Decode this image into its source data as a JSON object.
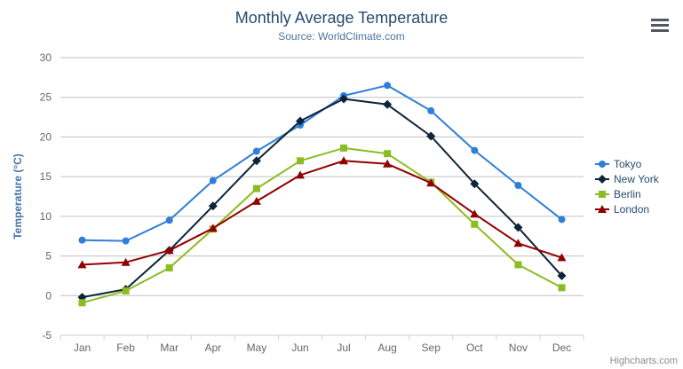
{
  "header": {
    "title": "Monthly Average Temperature",
    "subtitle": "Source: WorldClimate.com"
  },
  "toolbar": {
    "export_menu_icon": "hamburger-menu-icon"
  },
  "credits": {
    "label": "Highcharts.com"
  },
  "chart_data": {
    "type": "line",
    "title": "Monthly Average Temperature",
    "subtitle": "Source: WorldClimate.com",
    "categories": [
      "Jan",
      "Feb",
      "Mar",
      "Apr",
      "May",
      "Jun",
      "Jul",
      "Aug",
      "Sep",
      "Oct",
      "Nov",
      "Dec"
    ],
    "series": [
      {
        "name": "Tokyo",
        "color": "#2f7ed8",
        "marker": "circle",
        "values": [
          7.0,
          6.9,
          9.5,
          14.5,
          18.2,
          21.5,
          25.2,
          26.5,
          23.3,
          18.3,
          13.9,
          9.6
        ]
      },
      {
        "name": "New York",
        "color": "#0d233a",
        "marker": "diamond",
        "values": [
          -0.2,
          0.8,
          5.7,
          11.3,
          17.0,
          22.0,
          24.8,
          24.1,
          20.1,
          14.1,
          8.6,
          2.5
        ]
      },
      {
        "name": "Berlin",
        "color": "#8bbc21",
        "marker": "square",
        "values": [
          -0.9,
          0.6,
          3.5,
          8.4,
          13.5,
          17.0,
          18.6,
          17.9,
          14.3,
          9.0,
          3.9,
          1.0
        ]
      },
      {
        "name": "London",
        "color": "#910000",
        "marker": "triangle",
        "values": [
          3.9,
          4.2,
          5.7,
          8.5,
          11.9,
          15.2,
          17.0,
          16.6,
          14.2,
          10.3,
          6.6,
          4.8
        ]
      }
    ],
    "xlabel": "",
    "ylabel": "Temperature (°C)",
    "ylim": [
      -5,
      30
    ],
    "ytick_step": 5,
    "grid": true,
    "legend_position": "right"
  },
  "colors": {
    "title": "#274b6d",
    "subtitle": "#4d759e",
    "axis_label": "#666666",
    "axis_title": "#4572a7",
    "gridline": "#c0c0c0",
    "axis_line": "#c0d0e0",
    "legend_text": "#274b6d",
    "credits": "#8a8a8a",
    "menu_icon": "#53585f",
    "background": "#ffffff"
  }
}
